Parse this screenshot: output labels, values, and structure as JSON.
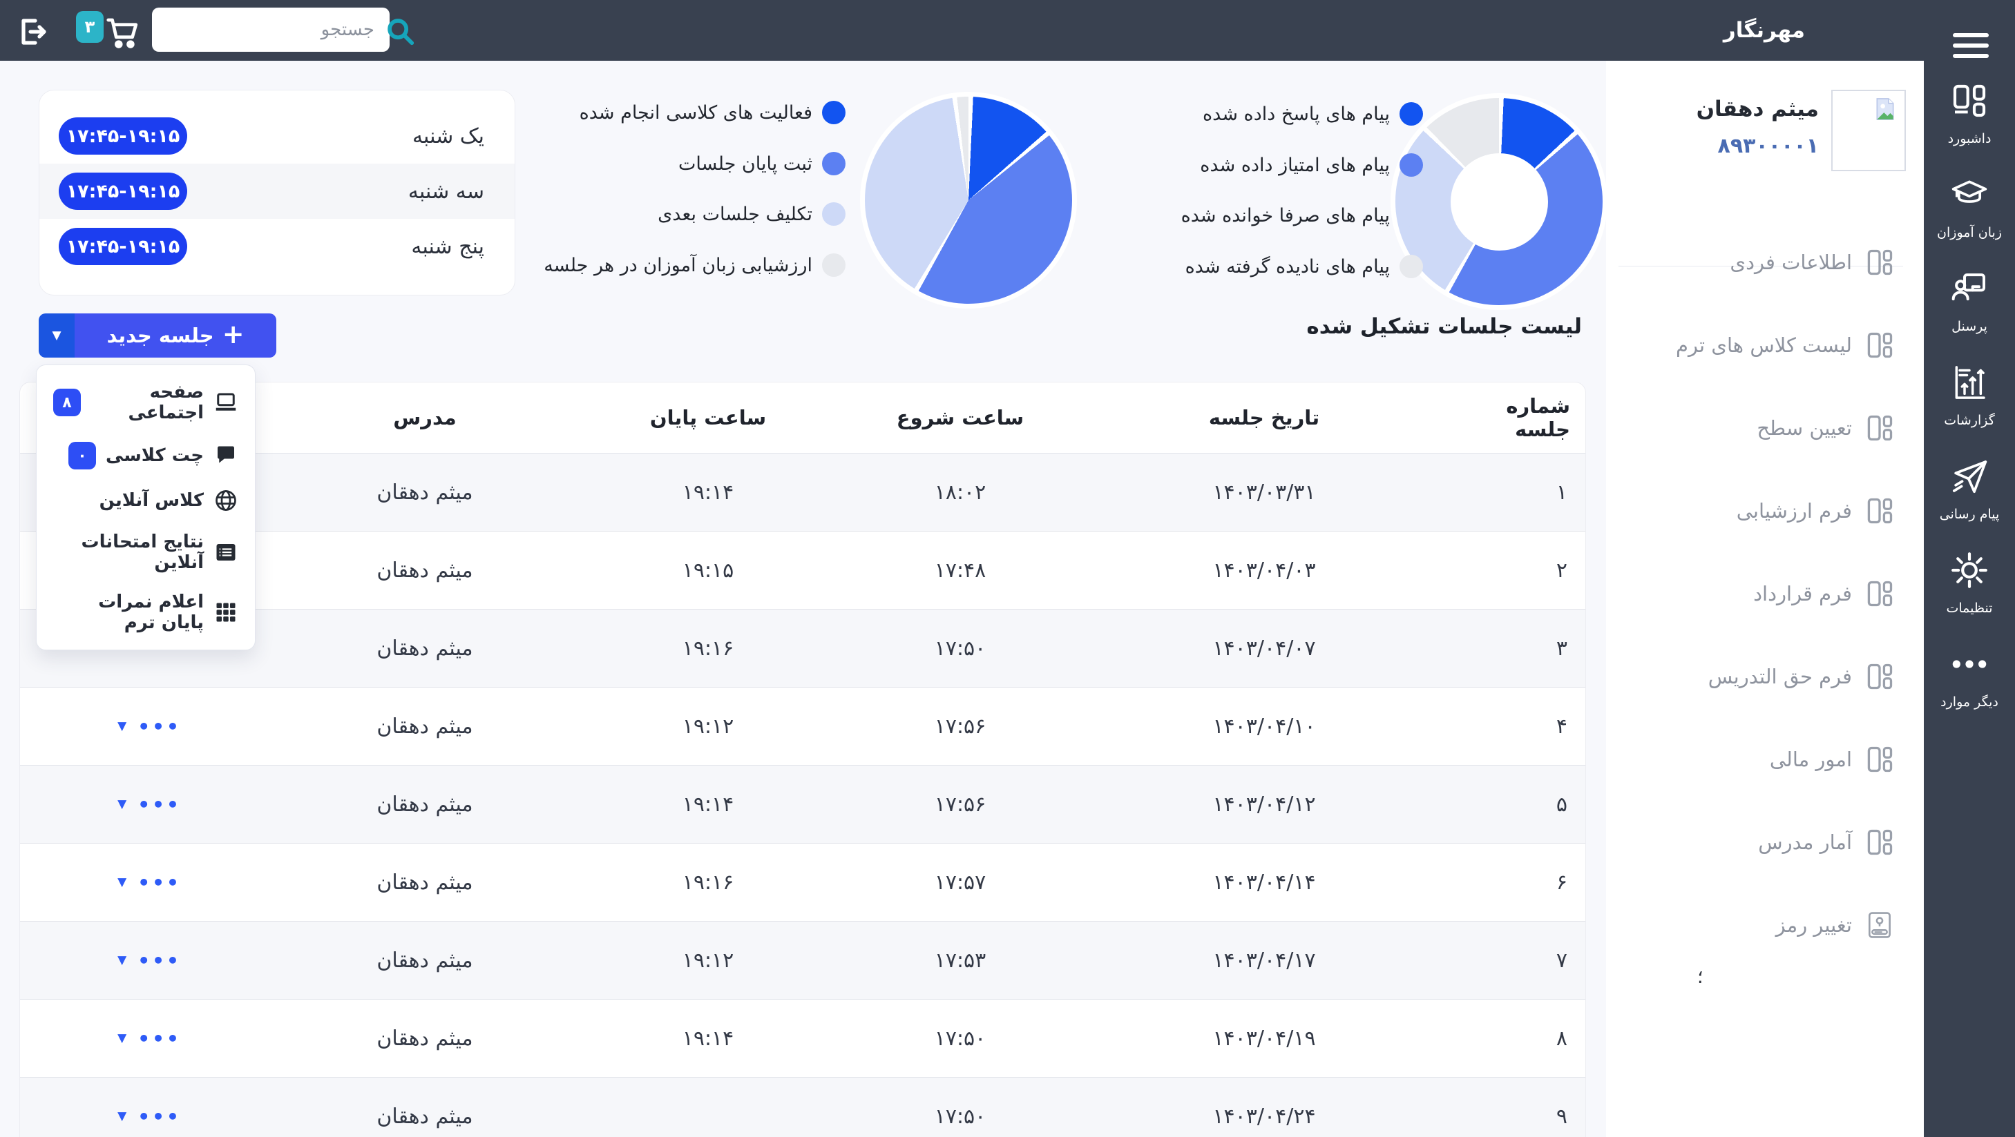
{
  "topbar": {
    "title": "مهرنگار",
    "search_placeholder": "جستجو",
    "cart_badge": "۳"
  },
  "sidebar": {
    "items": [
      {
        "label": "داشبورد",
        "icon": "dashboard-icon"
      },
      {
        "label": "زبان آموزان",
        "icon": "graduation-cap-icon"
      },
      {
        "label": "پرسنل",
        "icon": "personnel-icon"
      },
      {
        "label": "گزارشات",
        "icon": "reports-icon"
      },
      {
        "label": "پیام رسانی",
        "icon": "paper-plane-icon"
      },
      {
        "label": "تنظیمات",
        "icon": "gear-icon"
      },
      {
        "label": "دیگر موارد",
        "icon": "ellipsis-icon"
      }
    ]
  },
  "profile": {
    "name": "میثم دهقان",
    "code": "۸۹۳۰۰۰۰۱"
  },
  "profile_menu": {
    "items": [
      {
        "label": "اطلاعات فردی",
        "icon": "grid-small-icon"
      },
      {
        "label": "لیست کلاس های ترم",
        "icon": "grid-small-icon"
      },
      {
        "label": "تعیین سطح",
        "icon": "grid-small-icon"
      },
      {
        "label": "فرم ارزشیابی",
        "icon": "grid-small-icon"
      },
      {
        "label": "فرم قرارداد",
        "icon": "grid-small-icon"
      },
      {
        "label": "فرم حق التدریس",
        "icon": "grid-small-icon"
      },
      {
        "label": "امور مالی",
        "icon": "grid-small-icon"
      },
      {
        "label": "آمار مدرس",
        "icon": "grid-small-icon"
      },
      {
        "label": "تغییر رمز",
        "icon": "password-lock-icon"
      }
    ]
  },
  "stray_glyph": "؛",
  "chart_data": [
    {
      "type": "pie",
      "donut": true,
      "name": "messages-status",
      "labels": [
        "پیام های پاسخ داده شده",
        "پیام های امتیاز داده شده",
        "پیام های صرفا خوانده شده",
        "پیام های نادیده گرفته شده"
      ],
      "values": [
        13,
        45,
        29,
        13
      ],
      "colors": [
        "#1254f0",
        "#5c80f2",
        "#cdd9f7",
        "#e7e9ed"
      ],
      "legend_position": "left",
      "title": ""
    },
    {
      "type": "pie",
      "donut": false,
      "name": "class-activities",
      "labels": [
        "فعالیت های کلاسی انجام شده",
        "ثبت پایان جلسات",
        "تکلیف جلسات بعدی",
        "ارزشیابی زبان آموزان در هر جلسه"
      ],
      "values": [
        13.5,
        44.5,
        39.5,
        2.5
      ],
      "colors": [
        "#1254f0",
        "#5c80f2",
        "#cdd9f7",
        "#e7e9ed"
      ],
      "legend_position": "left",
      "title": ""
    }
  ],
  "schedule": {
    "rows": [
      {
        "day": "یک شنبه",
        "time": "۱۷:۴۵-۱۹:۱۵"
      },
      {
        "day": "سه شنبه",
        "time": "۱۷:۴۵-۱۹:۱۵"
      },
      {
        "day": "پنج شنبه",
        "time": "۱۷:۴۵-۱۹:۱۵"
      }
    ]
  },
  "new_session": {
    "label": "جلسه جدید",
    "plus": "+",
    "caret": "▼"
  },
  "session_menu": {
    "items": [
      {
        "label": "صفحه اجتماعی",
        "icon": "laptop-icon",
        "badge": "۸"
      },
      {
        "label": "چت کلاسی",
        "icon": "chat-icon",
        "badge": "۰"
      },
      {
        "label": "کلاس آنلاین",
        "icon": "globe-icon",
        "badge": ""
      },
      {
        "label": "نتایج امتحانات آنلاین",
        "icon": "list-icon",
        "badge": ""
      },
      {
        "label": "اعلام نمرات پایان ترم",
        "icon": "grid9-icon",
        "badge": ""
      }
    ]
  },
  "table": {
    "title": "لیست جلسات تشکیل شده",
    "columns": [
      "شماره جلسه",
      "تاریخ جلسه",
      "ساعت شروع",
      "ساعت پایان",
      "مدرس",
      ""
    ],
    "more_glyph": "•••",
    "caret_glyph": "▼",
    "rows": [
      {
        "num": "۱",
        "date": "۱۴۰۳/۰۳/۳۱",
        "start": "۱۸:۰۲",
        "end": "۱۹:۱۴",
        "teacher": "میثم دهقان",
        "actions": false
      },
      {
        "num": "۲",
        "date": "۱۴۰۳/۰۴/۰۳",
        "start": "۱۷:۴۸",
        "end": "۱۹:۱۵",
        "teacher": "میثم دهقان",
        "actions": false
      },
      {
        "num": "۳",
        "date": "۱۴۰۳/۰۴/۰۷",
        "start": "۱۷:۵۰",
        "end": "۱۹:۱۶",
        "teacher": "میثم دهقان",
        "actions": false
      },
      {
        "num": "۴",
        "date": "۱۴۰۳/۰۴/۱۰",
        "start": "۱۷:۵۶",
        "end": "۱۹:۱۲",
        "teacher": "میثم دهقان",
        "actions": true
      },
      {
        "num": "۵",
        "date": "۱۴۰۳/۰۴/۱۲",
        "start": "۱۷:۵۶",
        "end": "۱۹:۱۴",
        "teacher": "میثم دهقان",
        "actions": true
      },
      {
        "num": "۶",
        "date": "۱۴۰۳/۰۴/۱۴",
        "start": "۱۷:۵۷",
        "end": "۱۹:۱۶",
        "teacher": "میثم دهقان",
        "actions": true
      },
      {
        "num": "۷",
        "date": "۱۴۰۳/۰۴/۱۷",
        "start": "۱۷:۵۳",
        "end": "۱۹:۱۲",
        "teacher": "میثم دهقان",
        "actions": true
      },
      {
        "num": "۸",
        "date": "۱۴۰۳/۰۴/۱۹",
        "start": "۱۷:۵۰",
        "end": "۱۹:۱۴",
        "teacher": "میثم دهقان",
        "actions": true
      },
      {
        "num": "۹",
        "date": "۱۴۰۳/۰۴/۲۴",
        "start": "۱۷:۵۰",
        "end": "",
        "teacher": "میثم دهقان",
        "actions": true
      }
    ]
  },
  "colors": {
    "topbar_bg": "#394150",
    "accent_blue": "#1c3ef0",
    "button_blue": "#4152f0",
    "button_caret_blue": "#1b55e0",
    "action_blue": "#2e5bf7",
    "teal": "#2cb4c8",
    "code_blue": "#4a6cb3",
    "page_bg": "#f7f8fc"
  }
}
